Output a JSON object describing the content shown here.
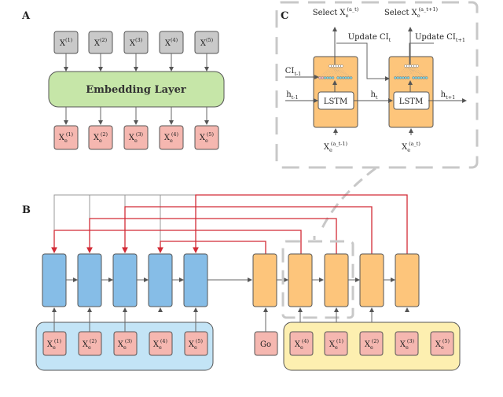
{
  "panels": {
    "a": "A",
    "b": "B",
    "c": "C"
  },
  "colors": {
    "raw_input": "#c9c9c9",
    "embedding": "#c6e6a8",
    "embedded": "#f5b7b0",
    "encoder": "#86bde7",
    "decoder": "#fdc57b",
    "encoder_group": "#c3e4f6",
    "decoder_group": "#fdefb0",
    "pointer": "#d22b36",
    "connector": "#aaaaaa"
  },
  "panel_a": {
    "inputs": [
      {
        "base": "X",
        "sub": "",
        "sup": "(1)"
      },
      {
        "base": "X",
        "sub": "",
        "sup": "(2)"
      },
      {
        "base": "X",
        "sub": "",
        "sup": "(3)"
      },
      {
        "base": "X",
        "sub": "",
        "sup": "(4)"
      },
      {
        "base": "X",
        "sub": "",
        "sup": "(5)"
      }
    ],
    "embedding_label": "Embedding Layer",
    "outputs": [
      {
        "base": "X",
        "sub": "e",
        "sup": "(1)"
      },
      {
        "base": "X",
        "sub": "e",
        "sup": "(2)"
      },
      {
        "base": "X",
        "sub": "e",
        "sup": "(3)"
      },
      {
        "base": "X",
        "sub": "e",
        "sup": "(4)"
      },
      {
        "base": "X",
        "sub": "e",
        "sup": "(5)"
      }
    ]
  },
  "panel_b": {
    "encoder_inputs": [
      {
        "base": "X",
        "sub": "e",
        "sup": "(1)"
      },
      {
        "base": "X",
        "sub": "e",
        "sup": "(2)"
      },
      {
        "base": "X",
        "sub": "e",
        "sup": "(3)"
      },
      {
        "base": "X",
        "sub": "e",
        "sup": "(4)"
      },
      {
        "base": "X",
        "sub": "e",
        "sup": "(5)"
      }
    ],
    "go_label": "Go",
    "decoder_inputs": [
      {
        "base": "X",
        "sub": "e",
        "sup": "(4)"
      },
      {
        "base": "X",
        "sub": "e",
        "sup": "(1)"
      },
      {
        "base": "X",
        "sub": "e",
        "sup": "(2)"
      },
      {
        "base": "X",
        "sub": "e",
        "sup": "(3)"
      },
      {
        "base": "X",
        "sub": "e",
        "sup": "(5)"
      }
    ]
  },
  "panel_c": {
    "select_1": {
      "base": "Select X",
      "sub": "e",
      "sup": "(a_t)"
    },
    "select_2": {
      "base": "Select X",
      "sub": "e",
      "sup": "(a_t+1)"
    },
    "update_1": {
      "base": "Update CI",
      "sub": "t",
      "sup": ""
    },
    "update_2": {
      "base": "Update CI",
      "sub": "t+1",
      "sup": ""
    },
    "ci_prev": {
      "base": "CI",
      "sub": "t-1",
      "sup": ""
    },
    "h_prev": {
      "base": "h",
      "sub": "t-1",
      "sup": ""
    },
    "h_t": {
      "base": "h",
      "sub": "t",
      "sup": ""
    },
    "h_next": {
      "base": "h",
      "sub": "t+1",
      "sup": ""
    },
    "lstm_label": "LSTM",
    "input_1": {
      "base": "X",
      "sub": "e",
      "sup": "(a_t-1)"
    },
    "input_2": {
      "base": "X",
      "sub": "e",
      "sup": "(a_t)"
    }
  }
}
